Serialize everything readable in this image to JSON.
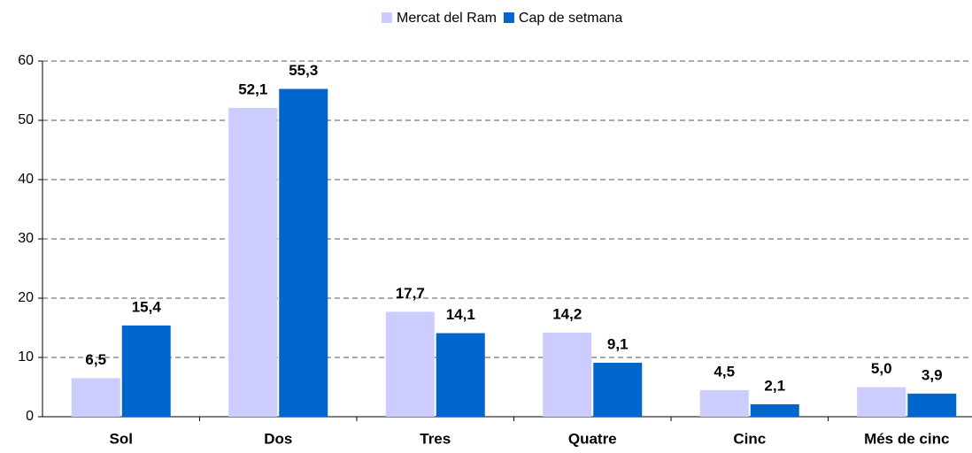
{
  "chart_data": {
    "type": "bar",
    "categories": [
      "Sol",
      "Dos",
      "Tres",
      "Quatre",
      "Cinc",
      "Més de cinc"
    ],
    "series": [
      {
        "name": "Mercat del Ram",
        "color": "#ccccff",
        "values": [
          6.5,
          52.1,
          17.7,
          14.2,
          4.5,
          5.0
        ],
        "value_labels": [
          "6,5",
          "52,1",
          "17,7",
          "14,2",
          "4,5",
          "5,0"
        ]
      },
      {
        "name": "Cap de setmana",
        "color": "#0066cc",
        "values": [
          15.4,
          55.3,
          14.1,
          9.1,
          2.1,
          3.9
        ],
        "value_labels": [
          "15,4",
          "55,3",
          "14,1",
          "9,1",
          "2,1",
          "3,9"
        ]
      }
    ],
    "ylim": [
      0,
      60
    ],
    "yticks": [
      0,
      10,
      20,
      30,
      40,
      50,
      60
    ],
    "grid": true,
    "legend": "top"
  }
}
